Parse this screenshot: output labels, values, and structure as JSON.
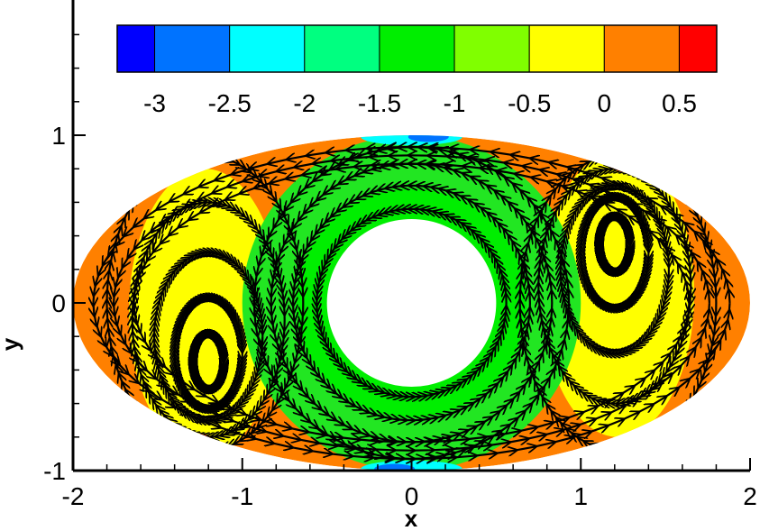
{
  "chart_data": {
    "type": "contour",
    "xlabel": "x",
    "ylabel": "y",
    "xlim": [
      -2,
      2
    ],
    "ylim": [
      -1,
      1.75
    ],
    "x_ticks": [
      {
        "value": -2,
        "label": "-2"
      },
      {
        "value": -1,
        "label": "-1"
      },
      {
        "value": 0,
        "label": "0"
      },
      {
        "value": 1,
        "label": "1"
      },
      {
        "value": 2,
        "label": "2"
      }
    ],
    "y_ticks": [
      {
        "value": -1,
        "label": "-1"
      },
      {
        "value": 0,
        "label": "0"
      },
      {
        "value": 1,
        "label": "1"
      }
    ],
    "colorbar": {
      "range": [
        -3.25,
        0.75
      ],
      "levels": [
        {
          "from": -3.25,
          "to": -3.0,
          "color": "#0000ff"
        },
        {
          "from": -3.0,
          "to": -2.5,
          "color": "#0073ff"
        },
        {
          "from": -2.5,
          "to": -2.0,
          "color": "#00ffff"
        },
        {
          "from": -2.0,
          "to": -1.5,
          "color": "#00ff80"
        },
        {
          "from": -1.5,
          "to": -1.0,
          "color": "#00ee00"
        },
        {
          "from": -1.0,
          "to": -0.5,
          "color": "#80ff00"
        },
        {
          "from": -0.5,
          "to": 0.0,
          "color": "#ffff00"
        },
        {
          "from": 0.0,
          "to": 0.5,
          "color": "#ff8000"
        },
        {
          "from": 0.5,
          "to": 0.75,
          "color": "#ff0000"
        }
      ],
      "tick_labels": [
        {
          "value": -3,
          "label": "-3"
        },
        {
          "value": -2.5,
          "label": "-2.5"
        },
        {
          "value": -2,
          "label": "-2"
        },
        {
          "value": -1.5,
          "label": "-1.5"
        },
        {
          "value": -1,
          "label": "-1"
        },
        {
          "value": -0.5,
          "label": "-0.5"
        },
        {
          "value": 0,
          "label": "0"
        },
        {
          "value": 0.5,
          "label": "0.5"
        }
      ]
    },
    "domain": {
      "outer_ellipse": {
        "cx": 0,
        "cy": 0,
        "rx": 2,
        "ry": 1
      },
      "inner_circle": {
        "cx": 0,
        "cy": 0,
        "r": 0.5
      }
    },
    "regions": [
      {
        "name": "annulus-outer",
        "color": "#22e622",
        "shape": "circle",
        "cx": 0,
        "cy": 0,
        "r": 1.0
      },
      {
        "name": "annulus-inner",
        "color": "#00ee00",
        "shape": "circle",
        "cx": 0,
        "cy": 0,
        "r": 0.68
      },
      {
        "name": "right-eddy",
        "color": "#ffff00",
        "shape": "ellipse",
        "cx": 1.22,
        "cy": 0.05,
        "rx": 0.45,
        "ry": 0.85
      },
      {
        "name": "left-eddy",
        "color": "#ffff00",
        "shape": "ellipse",
        "cx": -1.22,
        "cy": -0.05,
        "rx": 0.45,
        "ry": 0.85
      }
    ],
    "streamlines": [
      {
        "name": "ring",
        "cx": 0,
        "cy": 0,
        "r": 0.56,
        "direction": "counterclockwise"
      },
      {
        "name": "ring",
        "cx": 0,
        "cy": 0,
        "r": 0.7,
        "direction": "counterclockwise"
      },
      {
        "name": "ring",
        "cx": 0,
        "cy": 0,
        "r": 0.83,
        "direction": "counterclockwise"
      },
      {
        "name": "ring",
        "cx": 0,
        "cy": 0,
        "r": 0.93,
        "direction": "counterclockwise"
      },
      {
        "name": "right-vortex",
        "cx": 1.2,
        "cy": 0.35,
        "rx": 0.09,
        "ry": 0.16,
        "direction": "clockwise"
      },
      {
        "name": "right-vortex",
        "cx": 1.2,
        "cy": 0.3,
        "rx": 0.2,
        "ry": 0.33,
        "direction": "clockwise"
      },
      {
        "name": "right-vortex",
        "cx": 1.2,
        "cy": 0.2,
        "rx": 0.32,
        "ry": 0.5,
        "direction": "clockwise"
      },
      {
        "name": "right-vortex",
        "cx": 1.2,
        "cy": 0.1,
        "rx": 0.45,
        "ry": 0.7,
        "direction": "clockwise"
      },
      {
        "name": "right-vortex",
        "cx": 1.22,
        "cy": 0.0,
        "rx": 0.58,
        "ry": 0.88,
        "direction": "clockwise"
      },
      {
        "name": "left-vortex",
        "cx": -1.2,
        "cy": -0.35,
        "rx": 0.09,
        "ry": 0.16,
        "direction": "clockwise"
      },
      {
        "name": "left-vortex",
        "cx": -1.2,
        "cy": -0.3,
        "rx": 0.2,
        "ry": 0.33,
        "direction": "clockwise"
      },
      {
        "name": "left-vortex",
        "cx": -1.2,
        "cy": -0.2,
        "rx": 0.32,
        "ry": 0.5,
        "direction": "clockwise"
      },
      {
        "name": "left-vortex",
        "cx": -1.2,
        "cy": -0.1,
        "rx": 0.45,
        "ry": 0.7,
        "direction": "clockwise"
      },
      {
        "name": "left-vortex",
        "cx": -1.22,
        "cy": 0.0,
        "rx": 0.58,
        "ry": 0.88,
        "direction": "clockwise"
      },
      {
        "name": "outer-layer",
        "cx": 0,
        "cy": 0,
        "rx": 1.88,
        "ry": 0.93,
        "direction": "counterclockwise"
      },
      {
        "name": "outer-layer",
        "cx": 0,
        "cy": 0,
        "rx": 1.76,
        "ry": 0.88,
        "direction": "counterclockwise"
      },
      {
        "name": "outer-layer",
        "cx": 0,
        "cy": 0,
        "rx": 1.64,
        "ry": 0.83,
        "direction": "counterclockwise"
      }
    ]
  }
}
